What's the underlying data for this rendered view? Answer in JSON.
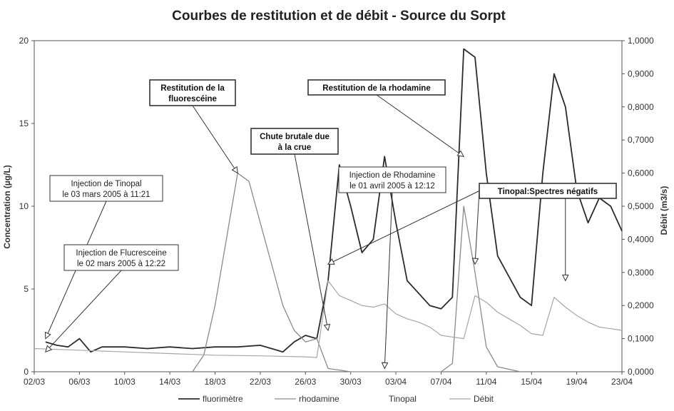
{
  "chart_data": {
    "type": "line",
    "title": "Courbes de restitution et de débit - Source du Sorpt",
    "ylabel": "Concentration (µg/L)",
    "y2label": "Débit (m3/s)",
    "ylim": [
      0,
      20
    ],
    "y2lim": [
      0,
      1.0
    ],
    "xlim": [
      "2005-03-02",
      "2005-04-23"
    ],
    "x_ticks": [
      "02/03",
      "06/03",
      "10/03",
      "14/03",
      "18/03",
      "22/03",
      "26/03",
      "30/03",
      "03/04",
      "07/04",
      "11/04",
      "15/04",
      "19/04",
      "23/04"
    ],
    "y_ticks": [
      "0",
      "5",
      "10",
      "15",
      "20"
    ],
    "y2_ticks": [
      "0,0000",
      "0,1000",
      "0,2000",
      "0,3000",
      "0,4000",
      "0,5000",
      "0,6000",
      "0,7000",
      "0,8000",
      "0,9000",
      "1,0000"
    ],
    "grid": false,
    "legend_position": "bottom",
    "series": [
      {
        "name": "fluorimètre",
        "axis": "left",
        "style": "dark",
        "points": [
          [
            "2005-03-03",
            1.8
          ],
          [
            "2005-03-04",
            1.6
          ],
          [
            "2005-03-05",
            1.5
          ],
          [
            "2005-03-06",
            2.0
          ],
          [
            "2005-03-07",
            1.2
          ],
          [
            "2005-03-08",
            1.5
          ],
          [
            "2005-03-10",
            1.5
          ],
          [
            "2005-03-12",
            1.4
          ],
          [
            "2005-03-14",
            1.5
          ],
          [
            "2005-03-16",
            1.4
          ],
          [
            "2005-03-18",
            1.5
          ],
          [
            "2005-03-20",
            1.5
          ],
          [
            "2005-03-22",
            1.6
          ],
          [
            "2005-03-24",
            1.2
          ],
          [
            "2005-03-25",
            1.8
          ],
          [
            "2005-03-26",
            2.2
          ],
          [
            "2005-03-27",
            2.0
          ],
          [
            "2005-03-28",
            5.5
          ],
          [
            "2005-03-29",
            12.5
          ],
          [
            "2005-03-30",
            10.0
          ],
          [
            "2005-03-31",
            7.2
          ],
          [
            "2005-04-01",
            8.0
          ],
          [
            "2005-04-02",
            13.0
          ],
          [
            "2005-04-03",
            9.0
          ],
          [
            "2005-04-04",
            5.5
          ],
          [
            "2005-04-06",
            4.0
          ],
          [
            "2005-04-07",
            3.8
          ],
          [
            "2005-04-08",
            4.5
          ],
          [
            "2005-04-09",
            19.5
          ],
          [
            "2005-04-10",
            19.0
          ],
          [
            "2005-04-11",
            12.0
          ],
          [
            "2005-04-12",
            7.0
          ],
          [
            "2005-04-14",
            4.5
          ],
          [
            "2005-04-15",
            4.0
          ],
          [
            "2005-04-16",
            12.0
          ],
          [
            "2005-04-17",
            18.0
          ],
          [
            "2005-04-18",
            16.0
          ],
          [
            "2005-04-19",
            11.0
          ],
          [
            "2005-04-20",
            9.0
          ],
          [
            "2005-04-21",
            10.5
          ],
          [
            "2005-04-22",
            10.0
          ],
          [
            "2005-04-23",
            8.5
          ]
        ]
      },
      {
        "name": "rhodamine",
        "axis": "left",
        "style": "light",
        "points": [
          [
            "2005-03-16",
            0.0
          ],
          [
            "2005-03-17",
            1.0
          ],
          [
            "2005-03-18",
            4.0
          ],
          [
            "2005-03-19",
            8.0
          ],
          [
            "2005-03-20",
            12.0
          ],
          [
            "2005-03-21",
            11.5
          ],
          [
            "2005-03-22",
            9.0
          ],
          [
            "2005-03-23",
            6.5
          ],
          [
            "2005-03-24",
            4.0
          ],
          [
            "2005-03-25",
            2.5
          ],
          [
            "2005-03-26",
            1.8
          ],
          [
            "2005-03-27",
            2.0
          ],
          [
            "2005-03-28",
            0.2
          ],
          [
            "2005-03-30",
            0.0
          ],
          [
            "2005-04-07",
            0.0
          ],
          [
            "2005-04-08",
            0.5
          ],
          [
            "2005-04-09",
            10.0
          ],
          [
            "2005-04-10",
            6.0
          ],
          [
            "2005-04-11",
            1.5
          ],
          [
            "2005-04-12",
            0.3
          ],
          [
            "2005-04-14",
            0.0
          ]
        ]
      },
      {
        "name": "Débit",
        "axis": "right",
        "style": "grey",
        "points": [
          [
            "2005-03-02",
            0.07
          ],
          [
            "2005-03-06",
            0.065
          ],
          [
            "2005-03-10",
            0.06
          ],
          [
            "2005-03-14",
            0.055
          ],
          [
            "2005-03-18",
            0.05
          ],
          [
            "2005-03-22",
            0.048
          ],
          [
            "2005-03-26",
            0.045
          ],
          [
            "2005-03-27",
            0.043
          ],
          [
            "2005-03-28",
            0.275
          ],
          [
            "2005-03-29",
            0.23
          ],
          [
            "2005-03-30",
            0.215
          ],
          [
            "2005-03-31",
            0.2
          ],
          [
            "2005-04-01",
            0.195
          ],
          [
            "2005-04-02",
            0.205
          ],
          [
            "2005-04-03",
            0.175
          ],
          [
            "2005-04-04",
            0.16
          ],
          [
            "2005-04-05",
            0.15
          ],
          [
            "2005-04-06",
            0.135
          ],
          [
            "2005-04-07",
            0.11
          ],
          [
            "2005-04-08",
            0.105
          ],
          [
            "2005-04-09",
            0.1
          ],
          [
            "2005-04-10",
            0.23
          ],
          [
            "2005-04-11",
            0.21
          ],
          [
            "2005-04-12",
            0.18
          ],
          [
            "2005-04-13",
            0.16
          ],
          [
            "2005-04-14",
            0.14
          ],
          [
            "2005-04-15",
            0.115
          ],
          [
            "2005-04-16",
            0.11
          ],
          [
            "2005-04-17",
            0.225
          ],
          [
            "2005-04-18",
            0.195
          ],
          [
            "2005-04-19",
            0.17
          ],
          [
            "2005-04-20",
            0.15
          ],
          [
            "2005-04-21",
            0.135
          ],
          [
            "2005-04-22",
            0.13
          ],
          [
            "2005-04-23",
            0.125
          ]
        ]
      },
      {
        "name": "Tinopal",
        "axis": "left",
        "style": "none",
        "points": []
      }
    ],
    "annotations": [
      {
        "text": "Injection de Tinopal\nle 03 mars 2005 à 11:21",
        "boxed": true,
        "bold": false,
        "arrow_to": [
          "2005-03-03",
          2.0
        ]
      },
      {
        "text": "Injection de Flucresceine\nle 02 mars 2005 à 12:22",
        "boxed": true,
        "bold": false,
        "arrow_to": [
          "2005-03-03",
          1.2
        ]
      },
      {
        "text": "Restitution de la\nfluorescéine",
        "boxed": true,
        "bold": true,
        "arrow_to": [
          "2005-03-20",
          12.0
        ]
      },
      {
        "text": "Chute brutale due\nà la crue",
        "boxed": true,
        "bold": true,
        "arrow_to": [
          "2005-03-28",
          2.5
        ]
      },
      {
        "text": "Injection de Rhodamine\nle 01 avril 2005 à 12:12",
        "boxed": true,
        "bold": false,
        "arrow_to": [
          "2005-04-02",
          0.2
        ]
      },
      {
        "text": "Restitution de la rhodamine",
        "boxed": true,
        "bold": true,
        "arrow_to": [
          "2005-04-09",
          13.0
        ]
      },
      {
        "text": "Tinopal:Spectres négatifs",
        "boxed": true,
        "bold": true,
        "arrow_to": [
          [
            "2005-03-28",
            6.5
          ],
          [
            "2005-04-10",
            6.5
          ],
          [
            "2005-04-18",
            5.5
          ]
        ]
      }
    ]
  }
}
